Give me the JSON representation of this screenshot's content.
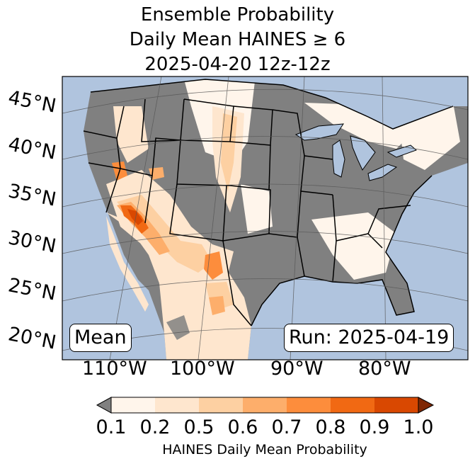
{
  "title": {
    "line1": "Ensemble Probability",
    "line2": "Daily Mean HAINES ≥ 6",
    "line3": "2025-04-20 12z-12z"
  },
  "map": {
    "lat_labels": [
      "45°N",
      "40°N",
      "35°N",
      "30°N",
      "25°N",
      "20°N"
    ],
    "lon_labels": [
      "110°W",
      "100°W",
      "90°W",
      "80°W"
    ],
    "mean_label": "Mean",
    "run_label": "Run: 2025-04-19",
    "colors": {
      "ocean": "#b0c4de",
      "land_low": "#808080",
      "water": "#b0c4de"
    }
  },
  "colorbar": {
    "label": "HAINES Daily Mean Probability",
    "ticks": [
      "0.1",
      "0.2",
      "0.5",
      "0.6",
      "0.7",
      "0.8",
      "0.9",
      "1.0"
    ],
    "colors": [
      "#fff5eb",
      "#fee6ce",
      "#fdd0a2",
      "#fdae6b",
      "#fd8d3c",
      "#f16913",
      "#d94801",
      "#a63603"
    ],
    "under_color": "#808080",
    "over_color": "#7f2704"
  }
}
